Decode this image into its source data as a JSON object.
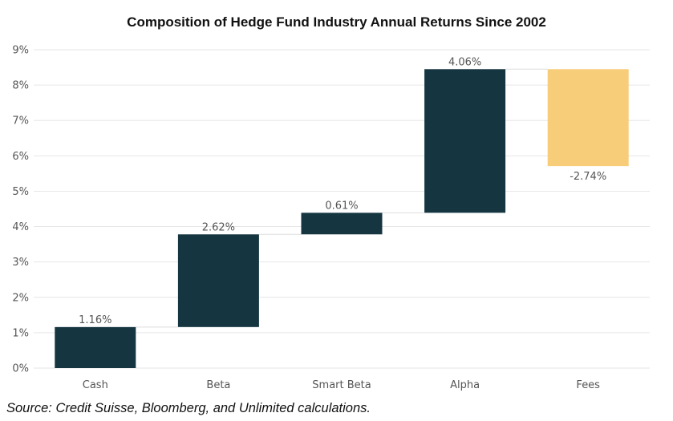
{
  "chart_data": {
    "type": "bar",
    "subtype": "waterfall",
    "title": "Composition of Hedge Fund Industry Annual Returns Since 2002",
    "xlabel": "",
    "ylabel": "",
    "ylim": [
      0,
      9
    ],
    "yticks": [
      "0%",
      "1%",
      "2%",
      "3%",
      "4%",
      "5%",
      "6%",
      "7%",
      "8%",
      "9%"
    ],
    "grid": true,
    "categories": [
      "Cash",
      "Beta",
      "Smart Beta",
      "Alpha",
      "Fees"
    ],
    "values": [
      1.16,
      2.62,
      0.61,
      4.06,
      -2.74
    ],
    "data_labels": [
      "1.16%",
      "2.62%",
      "0.61%",
      "4.06%",
      "-2.74%"
    ],
    "colors": {
      "positive": "#153641",
      "negative": "#f7cd7a",
      "grid": "#e6e6e6",
      "connector": "#dddddd"
    }
  },
  "source_note": "Source: Credit Suisse, Bloomberg, and Unlimited calculations."
}
